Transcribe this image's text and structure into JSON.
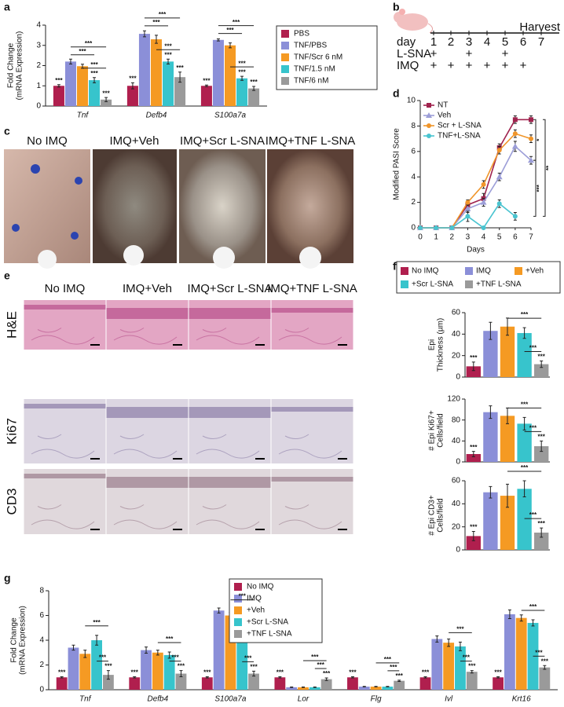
{
  "panels": [
    "a",
    "b",
    "c",
    "d",
    "e",
    "f",
    "g"
  ],
  "schedule": {
    "day_label": "day",
    "days": [
      1,
      2,
      3,
      4,
      5,
      6,
      7
    ],
    "end_label": "Harvest",
    "rows": [
      {
        "label": "L-SNA",
        "marks": [
          "+",
          null,
          "+",
          null,
          "+",
          null,
          null
        ]
      },
      {
        "label": "IMQ",
        "marks": [
          "+",
          "+",
          "+",
          "+",
          "+",
          "+",
          null
        ]
      }
    ]
  },
  "photos": [
    "No IMQ",
    "IMQ+Veh",
    "IMQ+Scr L-SNA",
    "IMQ+TNF L-SNA"
  ],
  "histology": {
    "columns": [
      "No IMQ",
      "IMQ+Veh",
      "IMQ+Scr L-SNA",
      "IMQ+TNF L-SNA"
    ],
    "rows": [
      "H&E",
      "Ki67",
      "CD3"
    ]
  },
  "f_legend": [
    {
      "name": "No IMQ",
      "color": "#b01f4e"
    },
    {
      "name": "IMQ",
      "color": "#8b8fd8"
    },
    {
      "name": "+Veh",
      "color": "#f59a23"
    },
    {
      "name": "+Scr L-SNA",
      "color": "#37c4cc"
    },
    {
      "name": "+TNF L-SNA",
      "color": "#9a9a9a"
    }
  ],
  "chart_data": [
    {
      "type": "grouped_bar",
      "y_label": [
        "Fold Change",
        "(mRNA Expression)"
      ],
      "categories": [
        "Tnf",
        "Defb4",
        "S100a7a"
      ],
      "ylim": [
        0,
        4
      ],
      "yticks": [
        0,
        1,
        2,
        3,
        4
      ],
      "series": [
        {
          "name": "PBS",
          "color": "#b01f4e",
          "values": [
            1.0,
            1.0,
            1.0
          ],
          "errors": [
            0.06,
            0.15,
            0.04
          ],
          "stars": [
            "***",
            "***",
            "***"
          ]
        },
        {
          "name": "TNF/PBS",
          "color": "#8b8fd8",
          "values": [
            2.2,
            3.57,
            3.27
          ],
          "errors": [
            0.12,
            0.15,
            0.05
          ],
          "stars": [
            null,
            null,
            null
          ]
        },
        {
          "name": "TNF/Scr 6 nM",
          "color": "#f59a23",
          "values": [
            1.97,
            3.3,
            3.0
          ],
          "errors": [
            0.1,
            0.2,
            0.12
          ],
          "stars": [
            null,
            null,
            null
          ]
        },
        {
          "name": "TNF/1.5 nM",
          "color": "#37c4cc",
          "values": [
            1.28,
            2.2,
            1.37
          ],
          "errors": [
            0.13,
            0.12,
            0.1
          ],
          "stars": [
            "***",
            "***",
            "***"
          ]
        },
        {
          "name": "TNF/6 nM",
          "color": "#9a9a9a",
          "values": [
            0.32,
            1.43,
            0.87
          ],
          "errors": [
            0.1,
            0.25,
            0.1
          ],
          "stars": [
            "***",
            "***",
            "***"
          ]
        }
      ],
      "brackets": [
        {
          "category": "Tnf",
          "from": "TNF/Scr 6 nM",
          "to": "TNF/6 nM",
          "label": "***"
        },
        {
          "category": "Tnf",
          "from": "TNF/PBS",
          "to": "TNF/1.5 nM",
          "label": "***"
        },
        {
          "category": "Tnf",
          "from": "TNF/PBS",
          "to": "TNF/6 nM",
          "label": "***"
        },
        {
          "category": "Defb4",
          "from": "TNF/Scr 6 nM",
          "to": "TNF/6 nM",
          "label": "***"
        },
        {
          "category": "Defb4",
          "from": "TNF/PBS",
          "to": "TNF/1.5 nM",
          "label": "***"
        },
        {
          "category": "Defb4",
          "from": "TNF/PBS",
          "to": "TNF/6 nM",
          "label": "***"
        },
        {
          "category": "S100a7a",
          "from": "TNF/Scr 6 nM",
          "to": "TNF/6 nM",
          "label": "***"
        },
        {
          "category": "S100a7a",
          "from": "TNF/PBS",
          "to": "TNF/1.5 nM",
          "label": "***"
        },
        {
          "category": "S100a7a",
          "from": "TNF/PBS",
          "to": "TNF/6 nM",
          "label": "***"
        }
      ]
    },
    {
      "type": "line",
      "y_label": "Modified PASI Score",
      "x_label": "Days",
      "x": [
        0,
        1,
        2,
        3,
        4,
        5,
        6,
        7
      ],
      "xlim": [
        0,
        7
      ],
      "xticks": [
        0,
        1,
        2,
        3,
        4,
        5,
        6,
        7
      ],
      "ylim": [
        0,
        10
      ],
      "yticks": [
        0,
        2,
        4,
        6,
        8,
        10
      ],
      "series": [
        {
          "name": "NT",
          "color": "#a0234e",
          "marker": "square",
          "values": [
            0,
            0,
            0,
            1.8,
            2.3,
            6.3,
            8.5,
            8.5
          ],
          "errors": [
            0,
            0,
            0,
            0.3,
            0.4,
            0.3,
            0.3,
            0.3
          ]
        },
        {
          "name": "Veh",
          "color": "#9c9ed8",
          "marker": "triangle",
          "values": [
            0,
            0,
            0,
            1.5,
            2.0,
            4.0,
            6.4,
            5.3
          ],
          "errors": [
            0,
            0,
            0,
            0.3,
            0.3,
            0.3,
            0.4,
            0.3
          ]
        },
        {
          "name": "Scr + L-SNA",
          "color": "#f0952a",
          "marker": "circle",
          "values": [
            0,
            0,
            0,
            2.0,
            3.4,
            6.1,
            7.4,
            7.0
          ],
          "errors": [
            0,
            0,
            0,
            0.2,
            0.3,
            0.3,
            0.3,
            0.3
          ]
        },
        {
          "name": "TNF+L-SNA",
          "color": "#49c4d0",
          "marker": "circle",
          "values": [
            0,
            0,
            0,
            0.9,
            0,
            1.9,
            0.9,
            null
          ],
          "errors": [
            0,
            0,
            0,
            0.4,
            0,
            0.3,
            0.3,
            null
          ]
        }
      ],
      "brackets": [
        {
          "from": "NT",
          "to": "Veh",
          "label": "*"
        },
        {
          "from": "NT",
          "to": "TNF+L-SNA",
          "label": "**"
        },
        {
          "from": "Veh",
          "to": "TNF+L-SNA",
          "label": "***"
        }
      ]
    },
    {
      "type": "bar",
      "y_label": [
        "Epi",
        "Thickness (µm)"
      ],
      "ylim": [
        0,
        60
      ],
      "yticks": [
        0,
        20,
        40,
        60
      ],
      "values": [
        10,
        43,
        47,
        41,
        12
      ],
      "errors": [
        4,
        8,
        8,
        5,
        3
      ],
      "stars": [
        "***",
        null,
        null,
        null,
        "***"
      ],
      "brackets": [
        {
          "from": "+Scr L-SNA",
          "to": "+TNF L-SNA",
          "label": "***"
        },
        {
          "from": "+Veh",
          "to": "+TNF L-SNA",
          "label": "***"
        }
      ]
    },
    {
      "type": "bar",
      "y_label": [
        "# Epi Ki67+",
        "Cells/field"
      ],
      "ylim": [
        0,
        120
      ],
      "yticks": [
        0,
        40,
        80,
        120
      ],
      "values": [
        15,
        95,
        88,
        73,
        30
      ],
      "errors": [
        5,
        12,
        15,
        12,
        10
      ],
      "stars": [
        "***",
        null,
        null,
        null,
        "***"
      ],
      "brackets": [
        {
          "from": "+Scr L-SNA",
          "to": "+TNF L-SNA",
          "label": "***"
        },
        {
          "from": "+Veh",
          "to": "+TNF L-SNA",
          "label": "***"
        }
      ]
    },
    {
      "type": "bar",
      "y_label": [
        "# Epi CD3+",
        "Cells/field"
      ],
      "ylim": [
        0,
        60
      ],
      "yticks": [
        0,
        20,
        40,
        60
      ],
      "values": [
        12,
        50,
        47,
        53,
        15
      ],
      "errors": [
        4,
        5,
        10,
        7,
        4
      ],
      "stars": [
        "***",
        null,
        null,
        null,
        "***"
      ],
      "brackets": [
        {
          "from": "+Scr L-SNA",
          "to": "+TNF L-SNA",
          "label": "***"
        },
        {
          "from": "+Veh",
          "to": "+TNF L-SNA",
          "label": "***"
        }
      ]
    },
    {
      "type": "grouped_bar",
      "y_label": [
        "Fold Change",
        "(mRNA Expression)"
      ],
      "categories": [
        "Tnf",
        "Defb4",
        "S100a7a",
        "Lor",
        "Flg",
        "Ivl",
        "Krt16"
      ],
      "ylim": [
        0,
        8
      ],
      "yticks": [
        0,
        2,
        4,
        6,
        8
      ],
      "series": [
        {
          "name": "No IMQ",
          "color": "#b01f4e",
          "values": [
            1,
            1,
            1,
            1,
            1,
            1,
            1
          ],
          "errors": [
            0.05,
            0.05,
            0.05,
            0.05,
            0.05,
            0.05,
            0.05
          ],
          "stars": [
            "***",
            "***",
            "***",
            "***",
            "***",
            "***",
            "***"
          ]
        },
        {
          "name": "IMQ",
          "color": "#8b8fd8",
          "values": [
            3.4,
            3.2,
            6.4,
            0.2,
            0.25,
            4.1,
            6.1
          ],
          "errors": [
            0.2,
            0.25,
            0.2,
            0.02,
            0.02,
            0.25,
            0.35
          ],
          "stars": [
            null,
            null,
            null,
            null,
            null,
            null,
            null
          ]
        },
        {
          "name": "+Veh",
          "color": "#f59a23",
          "values": [
            2.9,
            3.0,
            6.0,
            0.2,
            0.25,
            3.8,
            5.8
          ],
          "errors": [
            0.3,
            0.2,
            0.25,
            0.02,
            0.02,
            0.3,
            0.25
          ],
          "stars": [
            null,
            null,
            null,
            null,
            null,
            null,
            null
          ]
        },
        {
          "name": "+Scr L-SNA",
          "color": "#37c4cc",
          "values": [
            4.0,
            2.8,
            5.9,
            0.2,
            0.25,
            3.5,
            5.4
          ],
          "errors": [
            0.4,
            0.25,
            0.6,
            0.02,
            0.02,
            0.35,
            0.25
          ],
          "stars": [
            null,
            null,
            null,
            null,
            null,
            null,
            null
          ]
        },
        {
          "name": "+TNF L-SNA",
          "color": "#9a9a9a",
          "values": [
            1.2,
            1.3,
            1.3,
            0.85,
            0.72,
            1.45,
            1.8
          ],
          "errors": [
            0.35,
            0.25,
            0.2,
            0.1,
            0.05,
            0.1,
            0.15
          ],
          "stars": [
            "***",
            "***",
            "***",
            "***",
            "***",
            "***",
            "***"
          ]
        }
      ],
      "brackets": [
        {
          "category": "Tnf",
          "from": "+Scr L-SNA",
          "to": "+TNF L-SNA",
          "label": "***"
        },
        {
          "category": "Tnf",
          "from": "+Veh",
          "to": "+TNF L-SNA",
          "label": "***"
        },
        {
          "category": "Defb4",
          "from": "+Scr L-SNA",
          "to": "+TNF L-SNA",
          "label": "***"
        },
        {
          "category": "Defb4",
          "from": "+Veh",
          "to": "+TNF L-SNA",
          "label": "***"
        },
        {
          "category": "S100a7a",
          "from": "+Scr L-SNA",
          "to": "+TNF L-SNA",
          "label": "***"
        },
        {
          "category": "S100a7a",
          "from": "+Veh",
          "to": "+TNF L-SNA",
          "label": "***"
        },
        {
          "category": "Lor",
          "from": "+Scr L-SNA",
          "to": "+TNF L-SNA",
          "label": "***"
        },
        {
          "category": "Lor",
          "from": "+Veh",
          "to": "+TNF L-SNA",
          "label": "***"
        },
        {
          "category": "Flg",
          "from": "+Scr L-SNA",
          "to": "+TNF L-SNA",
          "label": "***"
        },
        {
          "category": "Flg",
          "from": "+Veh",
          "to": "+TNF L-SNA",
          "label": "***"
        },
        {
          "category": "Ivl",
          "from": "+Scr L-SNA",
          "to": "+TNF L-SNA",
          "label": "***"
        },
        {
          "category": "Ivl",
          "from": "+Veh",
          "to": "+TNF L-SNA",
          "label": "***"
        },
        {
          "category": "Krt16",
          "from": "+Scr L-SNA",
          "to": "+TNF L-SNA",
          "label": "***"
        },
        {
          "category": "Krt16",
          "from": "+Veh",
          "to": "+TNF L-SNA",
          "label": "***"
        }
      ]
    }
  ]
}
